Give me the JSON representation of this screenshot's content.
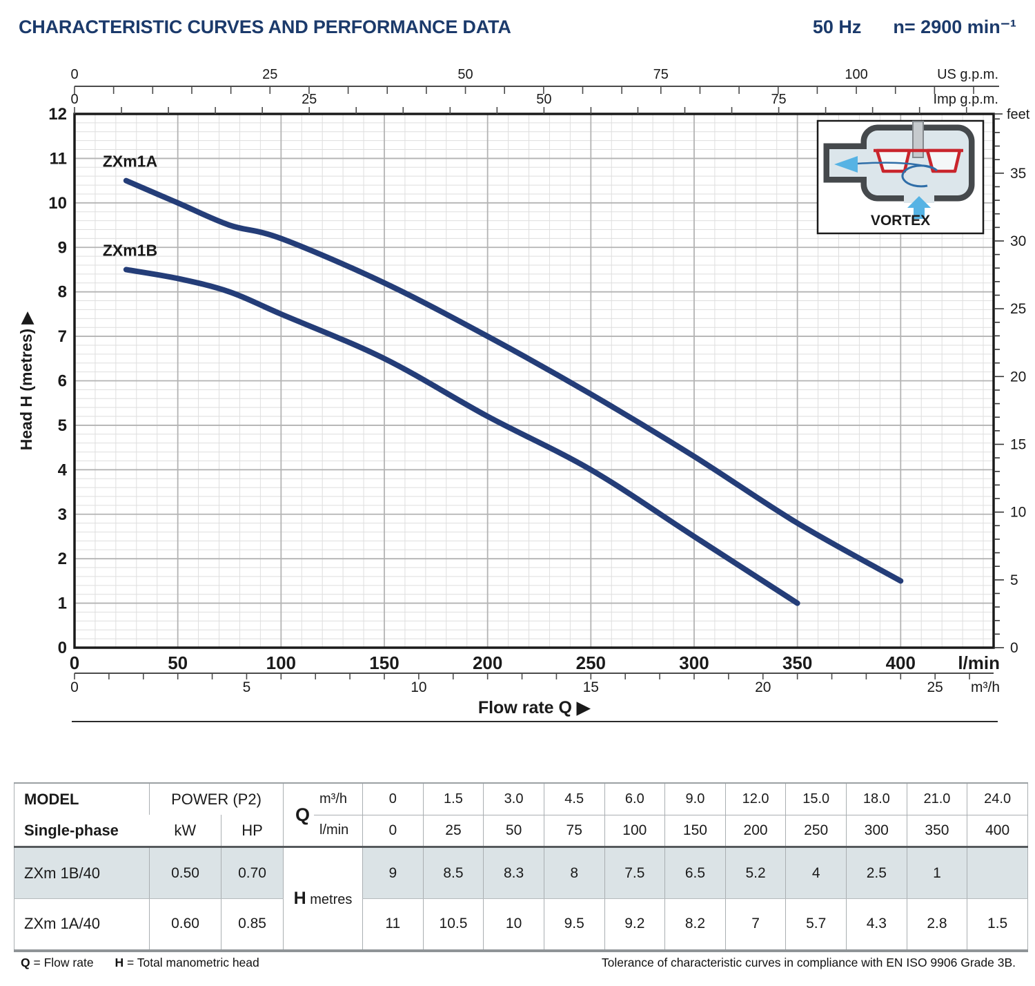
{
  "header": {
    "title": "CHARACTERISTIC CURVES AND PERFORMANCE DATA",
    "frequency": "50 Hz",
    "speed": "n= 2900 min⁻¹"
  },
  "inset": {
    "label": "VORTEX"
  },
  "chart_data": {
    "type": "line",
    "xlabel": "Flow rate  Q  ▶",
    "ylabel": "Head H  (metres)  ▶",
    "x_axis_lmin": {
      "unit": "l/min",
      "range": [
        0,
        445
      ],
      "major_ticks": [
        0,
        50,
        100,
        150,
        200,
        250,
        300,
        350,
        400
      ],
      "minor_step": 10
    },
    "x_axis_m3h": {
      "unit": "m³/h",
      "labeled_ticks": [
        0,
        5,
        10,
        15,
        20,
        25
      ],
      "minor_step": 1
    },
    "x_axis_usgpm": {
      "unit": "US g.p.m.",
      "labeled_ticks": [
        0,
        25,
        50,
        75,
        100
      ],
      "minor_step": 5
    },
    "x_axis_impgpm": {
      "unit": "Imp g.p.m.",
      "labeled_ticks": [
        0,
        25,
        50,
        75
      ],
      "minor_step": 5
    },
    "y_axis_m": {
      "unit": "metres",
      "range": [
        0,
        12
      ],
      "major_step": 1,
      "minor_step": 0.2
    },
    "y_axis_feet": {
      "unit": "feet",
      "label_step": 5,
      "minor_step": 1,
      "max_tick": 39
    },
    "grid": true,
    "series": [
      {
        "name": "ZXm1A",
        "color": "#243d78",
        "x_lmin": [
          25,
          50,
          75,
          100,
          150,
          200,
          250,
          300,
          350,
          400
        ],
        "head_m": [
          10.5,
          10,
          9.5,
          9.2,
          8.2,
          7,
          5.7,
          4.3,
          2.8,
          1.5
        ]
      },
      {
        "name": "ZXm1B",
        "color": "#243d78",
        "x_lmin": [
          25,
          50,
          75,
          100,
          150,
          200,
          250,
          300,
          350
        ],
        "head_m": [
          8.5,
          8.3,
          8,
          7.5,
          6.5,
          5.2,
          4,
          2.5,
          1
        ]
      }
    ]
  },
  "table": {
    "model_header": "MODEL",
    "model_subheader": "Single-phase",
    "power_header": "POWER (P2)",
    "power_units": [
      "kW",
      "HP"
    ],
    "q_label": "Q",
    "q_unit_rows": [
      "m³/h",
      "l/min"
    ],
    "q_m3h": [
      "0",
      "1.5",
      "3.0",
      "4.5",
      "6.0",
      "9.0",
      "12.0",
      "15.0",
      "18.0",
      "21.0",
      "24.0"
    ],
    "q_lmin": [
      "0",
      "25",
      "50",
      "75",
      "100",
      "150",
      "200",
      "250",
      "300",
      "350",
      "400"
    ],
    "h_label": "H",
    "h_unit": "metres",
    "rows": [
      {
        "model": "ZXm 1B/40",
        "kw": "0.50",
        "hp": "0.70",
        "highlight": true,
        "h_values": [
          "9",
          "8.5",
          "8.3",
          "8",
          "7.5",
          "6.5",
          "5.2",
          "4",
          "2.5",
          "1",
          ""
        ]
      },
      {
        "model": "ZXm 1A/40",
        "kw": "0.60",
        "hp": "0.85",
        "highlight": false,
        "h_values": [
          "11",
          "10.5",
          "10",
          "9.5",
          "9.2",
          "8.2",
          "7",
          "5.7",
          "4.3",
          "2.8",
          "1.5"
        ]
      }
    ]
  },
  "footer": {
    "legend": [
      {
        "term": "Q",
        "definition": "= Flow rate"
      },
      {
        "term": "H",
        "definition": "= Total manometric head"
      }
    ],
    "tolerance": "Tolerance of characteristic curves in compliance with EN ISO 9906 Grade 3B."
  },
  "colors": {
    "accent_navy": "#1b3a6b",
    "curve": "#243d78",
    "row_highlight": "#dbe3e6",
    "grid_minor": "#dedede",
    "grid_major": "#b3b3b3"
  }
}
